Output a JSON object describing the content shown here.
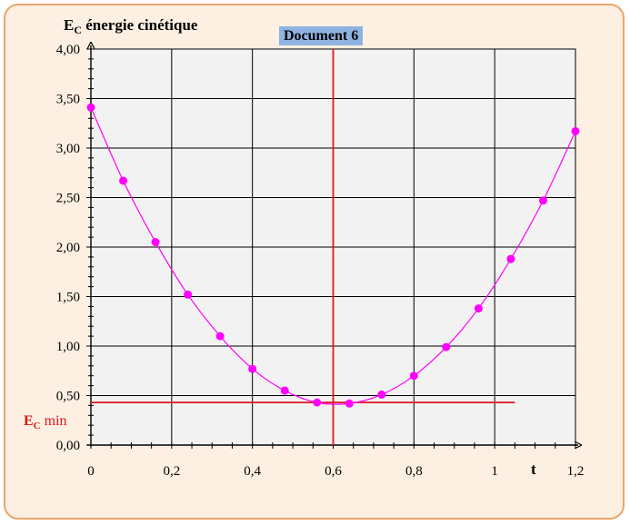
{
  "chart_data": {
    "type": "line",
    "title": "",
    "document_label": "Document 6",
    "ylabel_main": "E",
    "ylabel_sub": "C",
    "ylabel_rest": "énergie cinétique",
    "xlabel": "t",
    "annotation": {
      "label_main": "E",
      "label_sub": "C",
      "label_rest": "min",
      "y_value": 0.43,
      "x_value": 0.6,
      "color": "#e0141c"
    },
    "xlim": [
      0,
      1.2
    ],
    "ylim": [
      0,
      4.0
    ],
    "x_ticks": [
      0,
      0.2,
      0.4,
      0.6,
      0.8,
      1.0,
      1.2
    ],
    "x_tick_labels": [
      "0",
      "0,2",
      "0,4",
      "0,6",
      "0,8",
      "1",
      "1,2"
    ],
    "y_ticks": [
      0,
      0.5,
      1.0,
      1.5,
      2.0,
      2.5,
      3.0,
      3.5,
      4.0
    ],
    "y_tick_labels": [
      "0,00",
      "0,50",
      "1,00",
      "1,50",
      "2,00",
      "2,50",
      "3,00",
      "3,50",
      "4,00"
    ],
    "grid": true,
    "series": [
      {
        "color": "#ff00ff",
        "x": [
          0,
          0.08,
          0.16,
          0.24,
          0.32,
          0.4,
          0.48,
          0.56,
          0.64,
          0.72,
          0.8,
          0.88,
          0.96,
          1.04,
          1.12,
          1.2
        ],
        "y": [
          3.41,
          2.67,
          2.05,
          1.52,
          1.1,
          0.77,
          0.55,
          0.43,
          0.42,
          0.51,
          0.7,
          0.99,
          1.38,
          1.88,
          2.47,
          3.17
        ]
      }
    ]
  }
}
